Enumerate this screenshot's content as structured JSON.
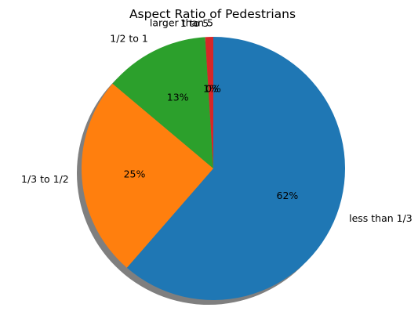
{
  "chart_data": {
    "type": "pie",
    "title": "Aspect Ratio of Pedestrians",
    "slices": [
      {
        "label": "less than 1/3",
        "value": 62,
        "pct_label": "62%",
        "color": "#1f77b4"
      },
      {
        "label": "1/3 to 1/2",
        "value": 25,
        "pct_label": "25%",
        "color": "#ff7f0e"
      },
      {
        "label": "1/2 to 1",
        "value": 13,
        "pct_label": "13%",
        "color": "#2ca02c"
      },
      {
        "label": "1 to 5",
        "value": 1,
        "pct_label": "1%",
        "color": "#d62728"
      },
      {
        "label": "larger than 5",
        "value": 0,
        "pct_label": "0%",
        "color": "#9467bd"
      }
    ],
    "start_angle_deg": 90,
    "direction": "clockwise",
    "shadow": true
  }
}
